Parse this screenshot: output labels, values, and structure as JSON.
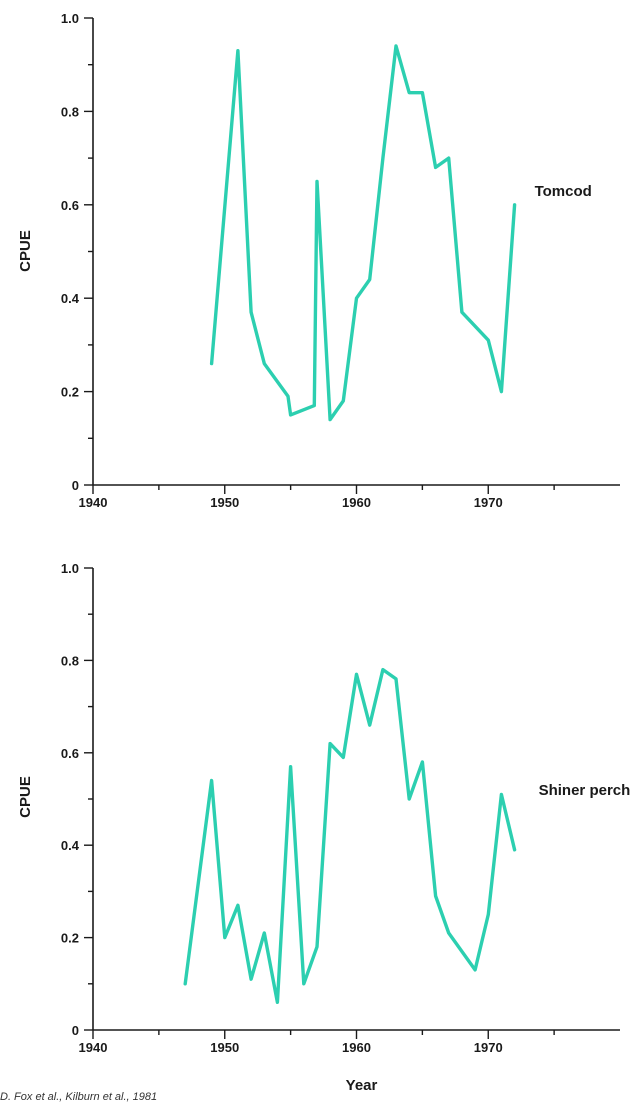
{
  "chart_data": [
    {
      "type": "line",
      "ylabel": "CPUE",
      "xlabel": "",
      "xlim": [
        1940,
        1980
      ],
      "ylim": [
        0,
        1.0
      ],
      "x_ticks": [
        1940,
        1950,
        1960,
        1970
      ],
      "y_ticks": [
        0,
        0.2,
        0.4,
        0.6,
        0.8,
        1.0
      ],
      "y_tick_labels": [
        "0",
        "0.2",
        "0.4",
        "0.6",
        "0.8",
        "1.0"
      ],
      "grid": false,
      "series": [
        {
          "name": "Tomcod",
          "color": "#2ccfb0",
          "x": [
            1949,
            1951,
            1952,
            1953,
            1954.8,
            1955,
            1956.8,
            1957,
            1958,
            1959,
            1960,
            1961,
            1962,
            1963,
            1964,
            1965,
            1966,
            1967,
            1968,
            1970,
            1971,
            1972
          ],
          "y": [
            0.26,
            0.93,
            0.37,
            0.26,
            0.19,
            0.15,
            0.17,
            0.65,
            0.14,
            0.18,
            0.4,
            0.44,
            0.7,
            0.94,
            0.84,
            0.84,
            0.68,
            0.7,
            0.37,
            0.31,
            0.2,
            0.6
          ]
        }
      ]
    },
    {
      "type": "line",
      "ylabel": "CPUE",
      "xlabel": "Year",
      "xlim": [
        1940,
        1980
      ],
      "ylim": [
        0,
        1.0
      ],
      "x_ticks": [
        1940,
        1950,
        1960,
        1970
      ],
      "y_ticks": [
        0,
        0.2,
        0.4,
        0.6,
        0.8,
        1.0
      ],
      "y_tick_labels": [
        "0",
        "0.2",
        "0.4",
        "0.6",
        "0.8",
        "1.0"
      ],
      "grid": false,
      "series": [
        {
          "name": "Shiner perch",
          "color": "#2ccfb0",
          "x": [
            1947,
            1949,
            1950,
            1951,
            1952,
            1953,
            1954,
            1955,
            1956,
            1957,
            1958,
            1959,
            1960,
            1961,
            1962,
            1963,
            1964,
            1965,
            1966,
            1967,
            1969,
            1970,
            1971,
            1972
          ],
          "y": [
            0.1,
            0.54,
            0.2,
            0.27,
            0.11,
            0.21,
            0.06,
            0.57,
            0.1,
            0.18,
            0.62,
            0.59,
            0.77,
            0.66,
            0.78,
            0.76,
            0.5,
            0.58,
            0.29,
            0.21,
            0.13,
            0.25,
            0.51,
            0.39
          ]
        }
      ]
    }
  ],
  "source_note": "D. Fox et al., Kilburn et al., 1981"
}
